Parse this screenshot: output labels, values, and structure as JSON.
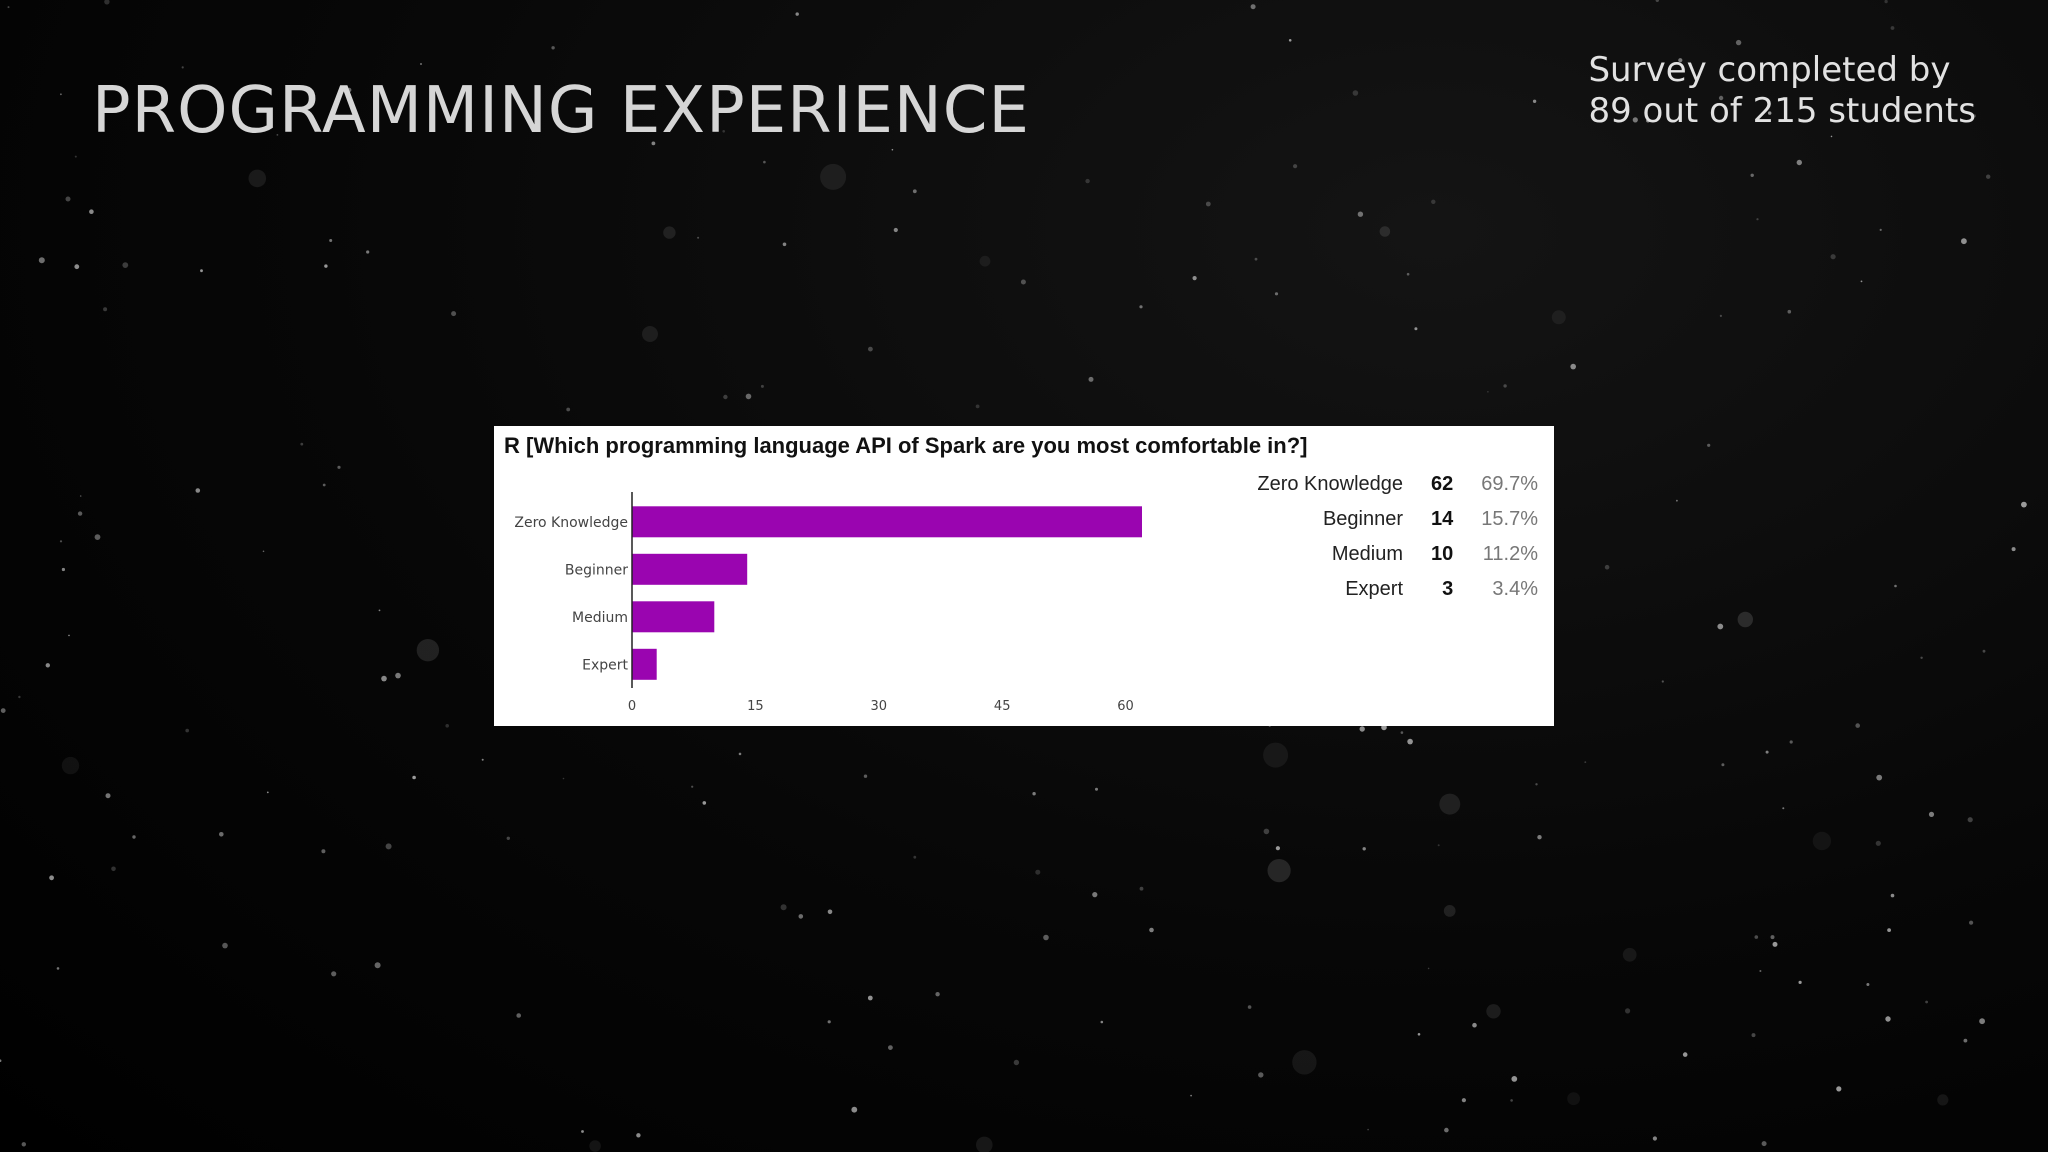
{
  "slide": {
    "title": "PROGRAMMING EXPERIENCE",
    "survey_note_line1": "Survey completed by",
    "survey_note_line2": "89 out of 215 students"
  },
  "colors": {
    "bar": "#9a05b0",
    "axis": "#222222",
    "tick_text": "#444444"
  },
  "chart_data": {
    "type": "bar",
    "orientation": "horizontal",
    "title": "R [Which programming language API of Spark are you most comfortable in?]",
    "categories": [
      "Zero Knowledge",
      "Beginner",
      "Medium",
      "Expert"
    ],
    "values": [
      62,
      14,
      10,
      3
    ],
    "percentages": [
      "69.7%",
      "15.7%",
      "11.2%",
      "3.4%"
    ],
    "xlim": [
      0,
      62
    ],
    "xticks": [
      0,
      15,
      30,
      45,
      60
    ],
    "grid": false,
    "legend": "right"
  }
}
